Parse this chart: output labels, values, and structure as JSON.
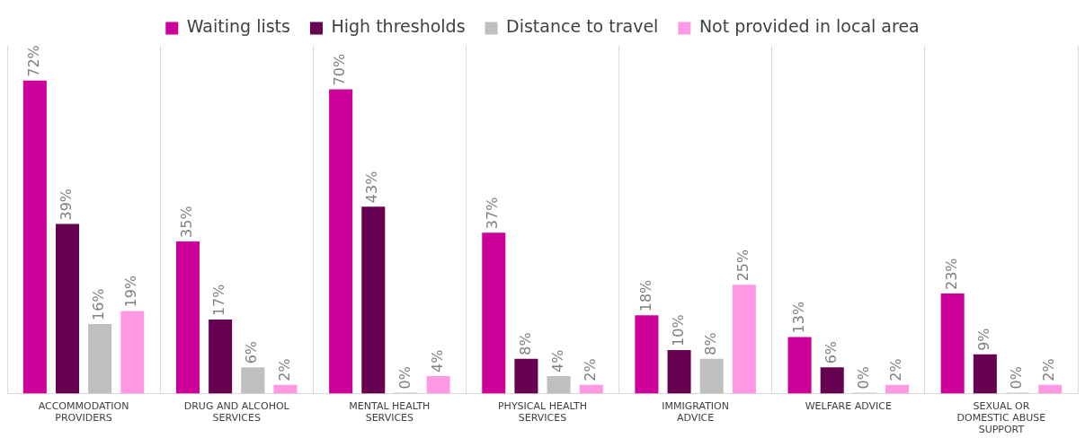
{
  "chart_data": {
    "type": "bar",
    "categories": [
      "ACCOMMODATION PROVIDERS",
      "DRUG AND ALCOHOL SERVICES",
      "MENTAL HEALTH SERVICES",
      "PHYSICAL HEALTH SERVICES",
      "IMMIGRATION ADVICE",
      "WELFARE ADVICE",
      "SEXUAL OR DOMESTIC ABUSE SUPPORT"
    ],
    "series": [
      {
        "name": "Waiting lists",
        "color": "#cc0099",
        "values": [
          72,
          35,
          70,
          37,
          18,
          13,
          23
        ],
        "value_labels": [
          "72%",
          "35%",
          "70%",
          "37%",
          "18%",
          "13%",
          "23%"
        ]
      },
      {
        "name": "High thresholds",
        "color": "#660050",
        "values": [
          39,
          17,
          43,
          8,
          10,
          6,
          9
        ],
        "value_labels": [
          "39%",
          "17%",
          "43%",
          "8%",
          "10%",
          "6%",
          "9%"
        ]
      },
      {
        "name": "Distance to travel",
        "color": "#bfbfbf",
        "values": [
          16,
          6,
          0,
          4,
          8,
          0,
          0
        ],
        "value_labels": [
          "16%",
          "6%",
          "0%",
          "4%",
          "8%",
          "0%",
          "0%"
        ]
      },
      {
        "name": "Not provided in local area",
        "color": "#ff99e6",
        "values": [
          19,
          2,
          4,
          2,
          25,
          2,
          2
        ],
        "value_labels": [
          "19%",
          "2%",
          "4%",
          "2%",
          "25%",
          "2%",
          "2%"
        ]
      }
    ],
    "grid": "x",
    "legend": "top"
  }
}
